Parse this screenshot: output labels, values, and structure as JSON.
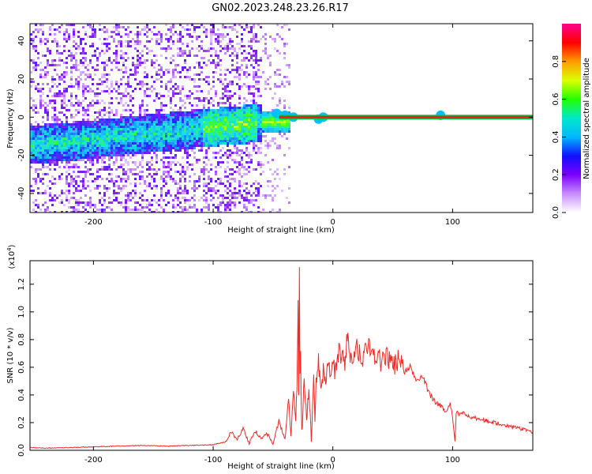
{
  "title": "GN02.2023.248.23.26.R17",
  "colors": {
    "snr_line": "#ee2a24",
    "frequency_ridge": "#ee1c1c",
    "axis": "#000000"
  },
  "chart_data": [
    {
      "type": "heatmap",
      "name": "spectrogram",
      "xlabel": "Height of straight line (km)",
      "ylabel": "Frequency (Hz)",
      "xlim": [
        -253,
        167
      ],
      "ylim": [
        -50,
        49
      ],
      "xticks": [
        -200,
        -100,
        0,
        100
      ],
      "yticks": [
        -40,
        -20,
        0,
        20,
        40
      ],
      "grid": false,
      "colormap": "rainbow (white-violet-blue-cyan-green-yellow-red-magenta)",
      "ridge": {
        "frequency": 0,
        "x_start": -45,
        "x_end": 167
      },
      "colorbar": {
        "label": "Normalized spectral amplitude",
        "range": [
          0.0,
          1.0
        ],
        "ticks": [
          "0.0",
          "0.2",
          "0.4",
          "0.6",
          "0.8"
        ],
        "tick_values": [
          0.0,
          0.2,
          0.4,
          0.6,
          0.8
        ],
        "stops": [
          "#ffffff",
          "#c98cff",
          "#7a00ff",
          "#1010ff",
          "#00b8ff",
          "#00e8c8",
          "#24ff00",
          "#dcff00",
          "#ff9a00",
          "#ff0000",
          "#ff0090"
        ]
      }
    },
    {
      "type": "line",
      "name": "snr",
      "xlabel": "Height of straight line (km)",
      "ylabel": "SNR (10 * v/v)",
      "y_multiplier": "(x10",
      "y_multiplier_exponent": "4",
      "y_multiplier_close": ")",
      "xlim": [
        -253,
        167
      ],
      "ylim": [
        0,
        1.37
      ],
      "xticks": [
        -200,
        -100,
        0,
        100
      ],
      "yticks": [
        "0.0",
        "0.2",
        "0.4",
        "0.6",
        "0.8",
        "1.0",
        "1.2"
      ],
      "ytick_values": [
        0.0,
        0.2,
        0.4,
        0.6,
        0.8,
        1.0,
        1.2
      ],
      "grid": false,
      "series": [
        {
          "x": [
            -253,
            -240,
            -220,
            -200,
            -180,
            -160,
            -140,
            -120,
            -100,
            -90,
            -85,
            -80,
            -75,
            -70,
            -65,
            -60,
            -55,
            -50,
            -45,
            -40,
            -37,
            -35,
            -33,
            -31,
            -30,
            -29,
            -28.5,
            -28,
            -27.5,
            -27,
            -26,
            -25,
            -24,
            -22,
            -20,
            -18,
            -16,
            -15,
            -14,
            -12,
            -10,
            -8,
            -6,
            -4,
            -2,
            0,
            2,
            5,
            10,
            12,
            15,
            20,
            25,
            30,
            35,
            40,
            45,
            50,
            55,
            60,
            65,
            70,
            75,
            80,
            85,
            90,
            95,
            98,
            100,
            102,
            103,
            104,
            105,
            110,
            115,
            120,
            130,
            140,
            150,
            160,
            167
          ],
          "y": [
            0.02,
            0.015,
            0.02,
            0.025,
            0.03,
            0.035,
            0.03,
            0.035,
            0.04,
            0.06,
            0.13,
            0.08,
            0.16,
            0.05,
            0.14,
            0.09,
            0.12,
            0.05,
            0.21,
            0.08,
            0.37,
            0.1,
            0.45,
            0.22,
            0.5,
            1.08,
            0.42,
            1.37,
            0.61,
            0.73,
            0.12,
            0.28,
            0.55,
            0.24,
            0.42,
            0.08,
            0.52,
            0.2,
            0.48,
            0.63,
            0.42,
            0.58,
            0.47,
            0.62,
            0.52,
            0.67,
            0.55,
            0.72,
            0.62,
            0.85,
            0.68,
            0.74,
            0.66,
            0.76,
            0.7,
            0.64,
            0.68,
            0.6,
            0.66,
            0.56,
            0.6,
            0.5,
            0.54,
            0.42,
            0.35,
            0.32,
            0.27,
            0.35,
            0.24,
            0.07,
            0.26,
            0.3,
            0.25,
            0.27,
            0.24,
            0.23,
            0.21,
            0.19,
            0.17,
            0.15,
            0.13
          ]
        }
      ]
    }
  ]
}
